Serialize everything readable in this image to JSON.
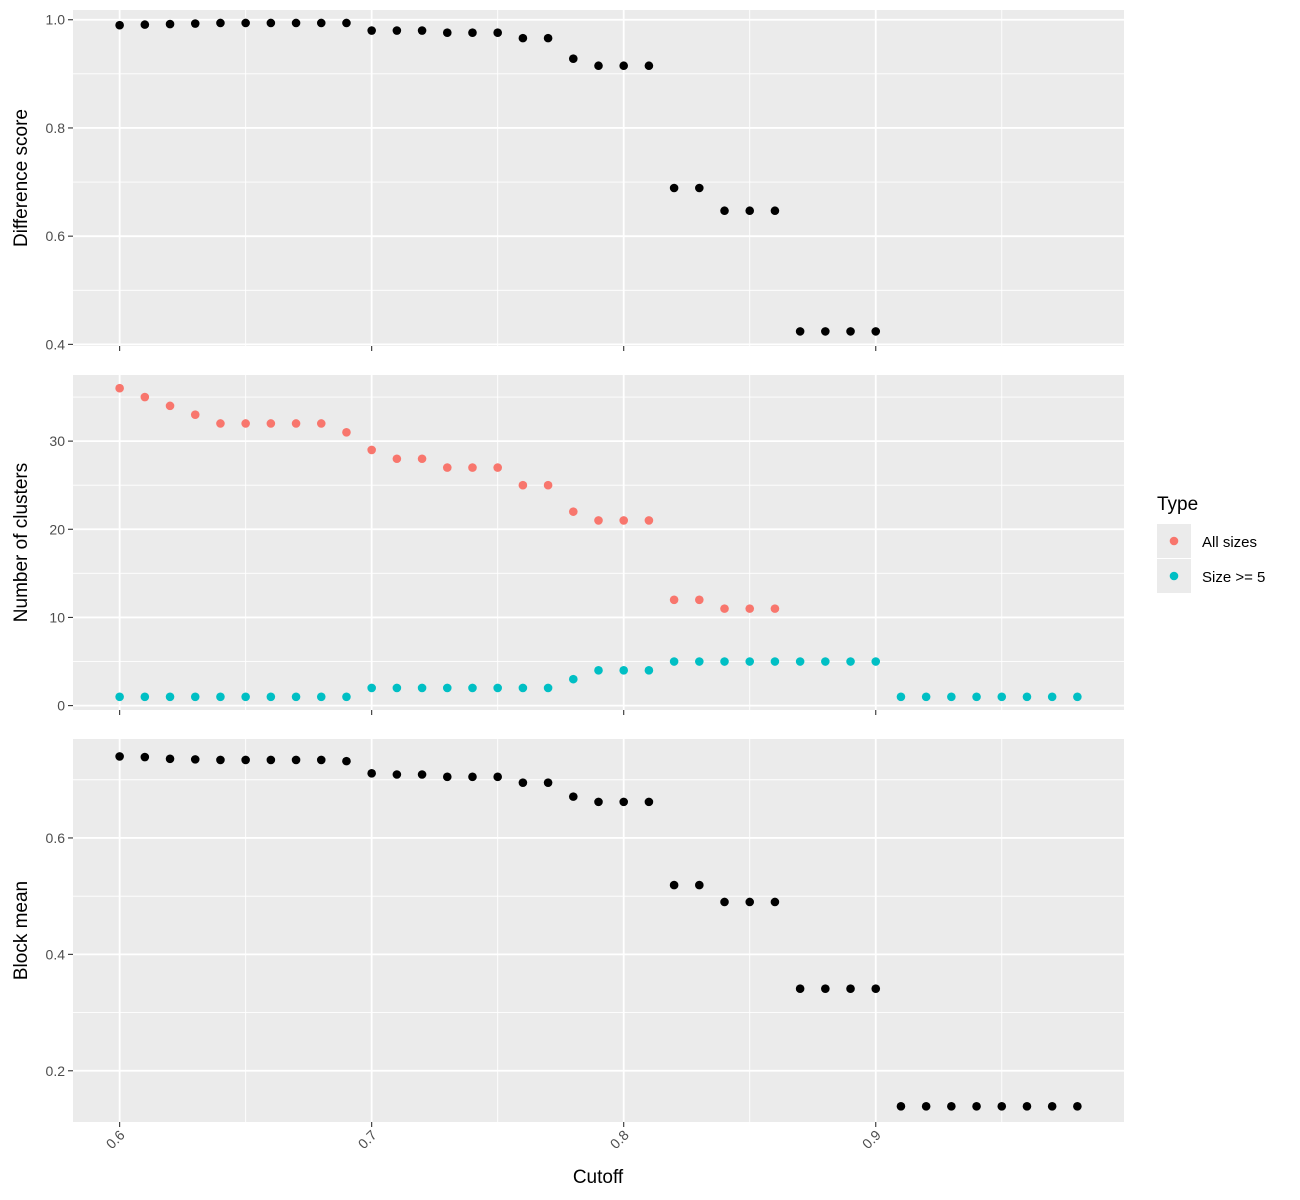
{
  "chart_data": {
    "type": "scatter",
    "xlabel": "Cutoff",
    "x_ticks": [
      "0.6",
      "0.7",
      "0.8",
      "0.9"
    ],
    "xlim": [
      0.5815,
      0.9985
    ],
    "legend": {
      "title": "Type",
      "placement": "right",
      "entries": [
        {
          "name": "All sizes",
          "color": "#F8766D"
        },
        {
          "name": "Size >= 5",
          "color": "#00BFC4"
        }
      ]
    },
    "panels": [
      {
        "ylabel": "Difference score",
        "ylim": [
          0.397,
          1.018
        ],
        "y_ticks": [
          "0.4",
          "0.6",
          "0.8",
          "1.0"
        ],
        "series": [
          {
            "color": "#000000",
            "x": [
              0.6,
              0.61,
              0.62,
              0.63,
              0.64,
              0.65,
              0.66,
              0.67,
              0.68,
              0.69,
              0.7,
              0.71,
              0.72,
              0.73,
              0.74,
              0.75,
              0.76,
              0.77,
              0.78,
              0.79,
              0.8,
              0.81,
              0.82,
              0.83,
              0.84,
              0.85,
              0.86,
              0.87,
              0.88,
              0.89,
              0.9
            ],
            "y": [
              0.99,
              0.991,
              0.992,
              0.993,
              0.994,
              0.994,
              0.994,
              0.994,
              0.994,
              0.994,
              0.98,
              0.98,
              0.98,
              0.976,
              0.976,
              0.976,
              0.966,
              0.966,
              0.928,
              0.915,
              0.915,
              0.915,
              0.689,
              0.689,
              0.647,
              0.647,
              0.647,
              0.424,
              0.424,
              0.424,
              0.424
            ]
          }
        ]
      },
      {
        "ylabel": "Number of clusters",
        "ylim": [
          -0.5,
          37.5
        ],
        "y_ticks": [
          "0",
          "10",
          "20",
          "30"
        ],
        "series": [
          {
            "name": "All sizes",
            "color": "#F8766D",
            "x": [
              0.6,
              0.61,
              0.62,
              0.63,
              0.64,
              0.65,
              0.66,
              0.67,
              0.68,
              0.69,
              0.7,
              0.71,
              0.72,
              0.73,
              0.74,
              0.75,
              0.76,
              0.77,
              0.78,
              0.79,
              0.8,
              0.81,
              0.82,
              0.83,
              0.84,
              0.85,
              0.86
            ],
            "y": [
              36,
              35,
              34,
              33,
              32,
              32,
              32,
              32,
              32,
              31,
              29,
              28,
              28,
              27,
              27,
              27,
              25,
              25,
              22,
              21,
              21,
              21,
              12,
              12,
              11,
              11,
              11
            ]
          },
          {
            "name": "Size >= 5",
            "color": "#00BFC4",
            "x": [
              0.6,
              0.61,
              0.62,
              0.63,
              0.64,
              0.65,
              0.66,
              0.67,
              0.68,
              0.69,
              0.7,
              0.71,
              0.72,
              0.73,
              0.74,
              0.75,
              0.76,
              0.77,
              0.78,
              0.79,
              0.8,
              0.81,
              0.82,
              0.83,
              0.84,
              0.85,
              0.86,
              0.87,
              0.88,
              0.89,
              0.9,
              0.91,
              0.92,
              0.93,
              0.94,
              0.95,
              0.96,
              0.97,
              0.98
            ],
            "y": [
              1,
              1,
              1,
              1,
              1,
              1,
              1,
              1,
              1,
              1,
              2,
              2,
              2,
              2,
              2,
              2,
              2,
              2,
              3,
              4,
              4,
              4,
              5,
              5,
              5,
              5,
              5,
              5,
              5,
              5,
              5,
              1,
              1,
              1,
              1,
              1,
              1,
              1,
              1
            ]
          }
        ]
      },
      {
        "ylabel": "Block mean",
        "ylim": [
          0.112,
          0.77
        ],
        "y_ticks": [
          "0.2",
          "0.4",
          "0.6"
        ],
        "series": [
          {
            "color": "#000000",
            "x": [
              0.6,
              0.61,
              0.62,
              0.63,
              0.64,
              0.65,
              0.66,
              0.67,
              0.68,
              0.69,
              0.7,
              0.71,
              0.72,
              0.73,
              0.74,
              0.75,
              0.76,
              0.77,
              0.78,
              0.79,
              0.8,
              0.81,
              0.82,
              0.83,
              0.84,
              0.85,
              0.86,
              0.87,
              0.88,
              0.89,
              0.9,
              0.91,
              0.92,
              0.93,
              0.94,
              0.95,
              0.96,
              0.97,
              0.98
            ],
            "y": [
              0.74,
              0.739,
              0.736,
              0.735,
              0.734,
              0.734,
              0.734,
              0.734,
              0.734,
              0.732,
              0.711,
              0.709,
              0.709,
              0.705,
              0.705,
              0.705,
              0.695,
              0.695,
              0.671,
              0.662,
              0.662,
              0.662,
              0.519,
              0.519,
              0.49,
              0.49,
              0.49,
              0.341,
              0.341,
              0.341,
              0.341,
              0.139,
              0.139,
              0.139,
              0.139,
              0.139,
              0.139,
              0.139,
              0.139
            ]
          }
        ]
      }
    ]
  }
}
